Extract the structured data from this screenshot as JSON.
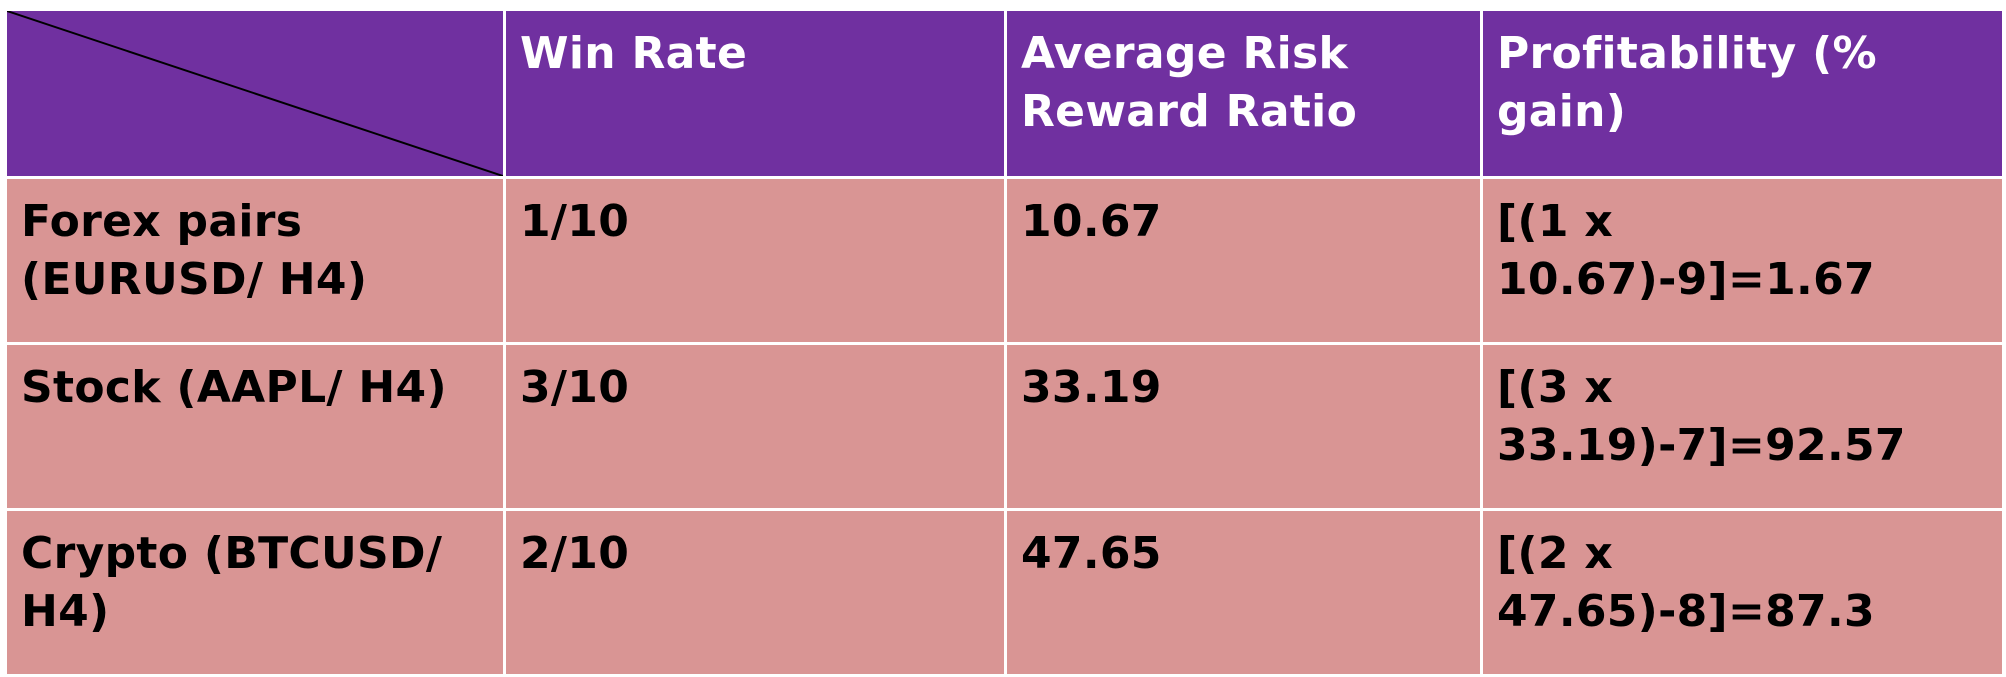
{
  "colors": {
    "header_background": "#7030a0",
    "header_text": "#ffffff",
    "body_background": "#d99594",
    "body_text": "#000000",
    "border": "#ffffff",
    "diagonal_line": "#000000"
  },
  "table": {
    "headers": [
      "Win Rate",
      "Average Risk Reward Ratio",
      "Profitability (% gain)"
    ],
    "rows": [
      {
        "label": "Forex pairs (EURUSD/ H4)",
        "win_rate": "1/10",
        "avg_rr": "10.67",
        "profitability": "[(1 x 10.67)-9]=1.67"
      },
      {
        "label": "Stock (AAPL/ H4)",
        "win_rate": "3/10",
        "avg_rr": "33.19",
        "profitability": "[(3 x 33.19)-7]=92.57"
      },
      {
        "label": "Crypto (BTCUSD/ H4)",
        "win_rate": "2/10",
        "avg_rr": "47.65",
        "profitability": "[(2 x 47.65)-8]=87.3"
      }
    ]
  }
}
